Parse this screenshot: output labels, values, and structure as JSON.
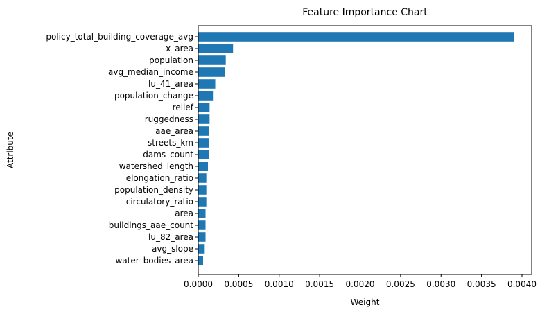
{
  "chart_data": {
    "type": "bar",
    "orientation": "horizontal",
    "title": "Feature Importance Chart",
    "xlabel": "Weight",
    "ylabel": "Attribute",
    "xlim": [
      0,
      0.00412
    ],
    "xticks": [
      "0.0000",
      "0.0005",
      "0.0010",
      "0.0015",
      "0.0020",
      "0.0025",
      "0.0030",
      "0.0035",
      "0.0040"
    ],
    "xtick_values": [
      0,
      0.0005,
      0.001,
      0.0015,
      0.002,
      0.0025,
      0.003,
      0.0035,
      0.004
    ],
    "bar_color": "#1f77b4",
    "grid": false,
    "categories": [
      "policy_total_building_coverage_avg",
      "x_area",
      "population",
      "avg_median_income",
      "lu_41_area",
      "population_change",
      "relief",
      "ruggedness",
      "aae_area",
      "streets_km",
      "dams_count",
      "watershed_length",
      "elongation_ratio",
      "population_density",
      "circulatory_ratio",
      "area",
      "buildings_aae_count",
      "lu_82_area",
      "avg_slope",
      "water_bodies_area"
    ],
    "values": [
      0.0039,
      0.00043,
      0.00034,
      0.00033,
      0.00021,
      0.00019,
      0.00014,
      0.00014,
      0.00013,
      0.00013,
      0.00013,
      0.00012,
      0.0001,
      0.0001,
      0.0001,
      9e-05,
      9e-05,
      9e-05,
      8e-05,
      6e-05
    ]
  }
}
